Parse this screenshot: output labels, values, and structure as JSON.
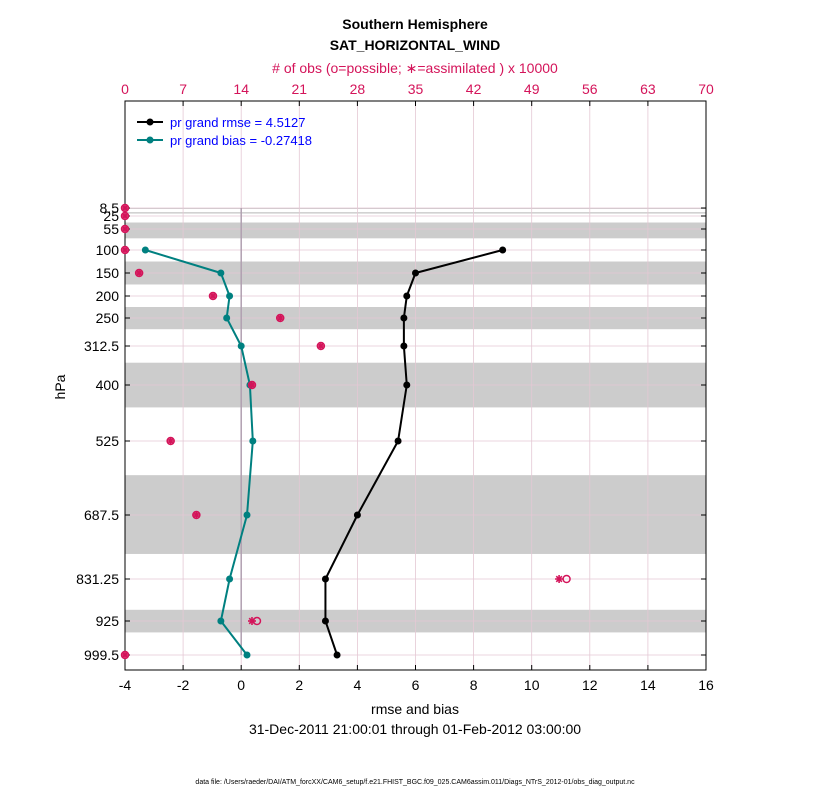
{
  "chart_data": {
    "type": "line",
    "title": "Southern Hemisphere",
    "subtitle": "SAT_HORIZONTAL_WIND",
    "top_axis_label": "# of obs (o=possible; ∗=assimilated ) x 10000",
    "top_axis_ticks": [
      "0",
      "7",
      "14",
      "21",
      "28",
      "35",
      "42",
      "49",
      "56",
      "63",
      "70"
    ],
    "xlabel": "rmse and bias",
    "ylabel": "hPa",
    "date_range": "31-Dec-2011 21:00:01 through 01-Feb-2012 03:00:00",
    "footnote": "data file: /Users/raeder/DAI/ATM_forcXX/CAM6_setup/f.e21.FHIST_BGC.f09_025.CAM6assim.011/Diags_NTrS_2012-01/obs_diag_output.nc",
    "xlim": [
      -4,
      16
    ],
    "top_xlim": [
      0,
      70
    ],
    "x_ticks": [
      "-4",
      "-2",
      "0",
      "2",
      "4",
      "6",
      "8",
      "10",
      "12",
      "14",
      "16"
    ],
    "levels": [
      8.5,
      25,
      55,
      100,
      150,
      200,
      250,
      312.5,
      400,
      525,
      687.5,
      831.25,
      925,
      999.5
    ],
    "level_labels": [
      "8.5",
      "25",
      "55",
      "100",
      "150",
      "200",
      "250",
      "312.5",
      "400",
      "525",
      "687.5",
      "831.25",
      "925",
      "999.5"
    ],
    "series": [
      {
        "name": "rmse",
        "legend": "pr grand rmse = 4.5127",
        "color": "#000000",
        "levels": [
          100,
          150,
          200,
          250,
          312.5,
          400,
          525,
          687.5,
          831.25,
          925,
          999.5
        ],
        "values": [
          9.0,
          6.0,
          5.7,
          5.6,
          5.6,
          5.7,
          5.4,
          4.0,
          2.9,
          2.9,
          3.3
        ]
      },
      {
        "name": "bias",
        "legend": "pr grand bias = -0.27418",
        "color": "#008080",
        "levels": [
          100,
          150,
          200,
          250,
          312.5,
          400,
          525,
          687.5,
          831.25,
          925,
          999.5
        ],
        "values": [
          -3.3,
          -0.7,
          -0.4,
          -0.5,
          0.0,
          0.3,
          0.4,
          0.2,
          -0.4,
          -0.7,
          0.2
        ]
      }
    ],
    "obs_assimilated": {
      "levels": [
        8.5,
        25,
        55,
        100,
        150,
        200,
        250,
        312.5,
        400,
        525,
        687.5,
        831.25,
        925,
        999.5
      ],
      "values": [
        0.0,
        0.0,
        0.0,
        0.0,
        1.7,
        10.6,
        18.7,
        23.6,
        15.3,
        5.5,
        8.6,
        52.3,
        15.3,
        0.0
      ]
    },
    "obs_possible": {
      "levels": [
        8.5,
        25,
        55,
        100,
        150,
        200,
        250,
        312.5,
        400,
        525,
        687.5,
        831.25,
        925,
        999.5
      ],
      "values": [
        0.0,
        0.0,
        0.0,
        0.0,
        1.7,
        10.6,
        18.7,
        23.6,
        15.3,
        5.5,
        8.6,
        53.2,
        15.9,
        0.0
      ]
    },
    "colors": {
      "rmse": "#000000",
      "bias": "#008080",
      "obs": "#d4145a",
      "axis_label_top": "#d4145a",
      "legend_text": "#0000ff",
      "shade": "#cccccc",
      "zero_line": "#b0a0b0"
    },
    "legend_position": "top-left",
    "grid": true
  }
}
